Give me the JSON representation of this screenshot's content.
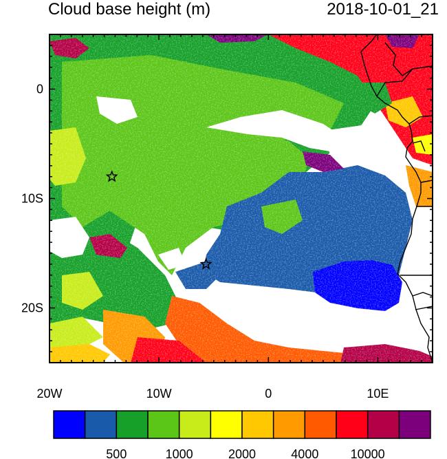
{
  "title": {
    "field": "Cloud base height (m)",
    "timestamp": "2018-10-01_21"
  },
  "axes": {
    "x_ticks": [
      {
        "label": "20W",
        "lon": -20
      },
      {
        "label": "10W",
        "lon": -10
      },
      {
        "label": "0",
        "lon": 0
      },
      {
        "label": "10E",
        "lon": 10
      }
    ],
    "y_ticks": [
      {
        "label": "0",
        "lat": 0
      },
      {
        "label": "10S",
        "lat": -10
      },
      {
        "label": "20S",
        "lat": -20
      }
    ],
    "lon_range": [
      -20,
      15
    ],
    "lat_range": [
      -25,
      5
    ]
  },
  "colorbar": {
    "colors": [
      "#0000ff",
      "#1a5aaa",
      "#16a02a",
      "#5cc618",
      "#c8ec1a",
      "#ffff00",
      "#ffc800",
      "#ff9a00",
      "#ff5a00",
      "#ff0018",
      "#b40046",
      "#7c007c"
    ],
    "labels": [
      "500",
      "1000",
      "2000",
      "4000",
      "10000"
    ]
  },
  "markers": [
    {
      "name": "star",
      "lon": -14.3,
      "lat": -8.0
    },
    {
      "name": "star",
      "lon": -5.7,
      "lat": -16.0
    }
  ]
}
